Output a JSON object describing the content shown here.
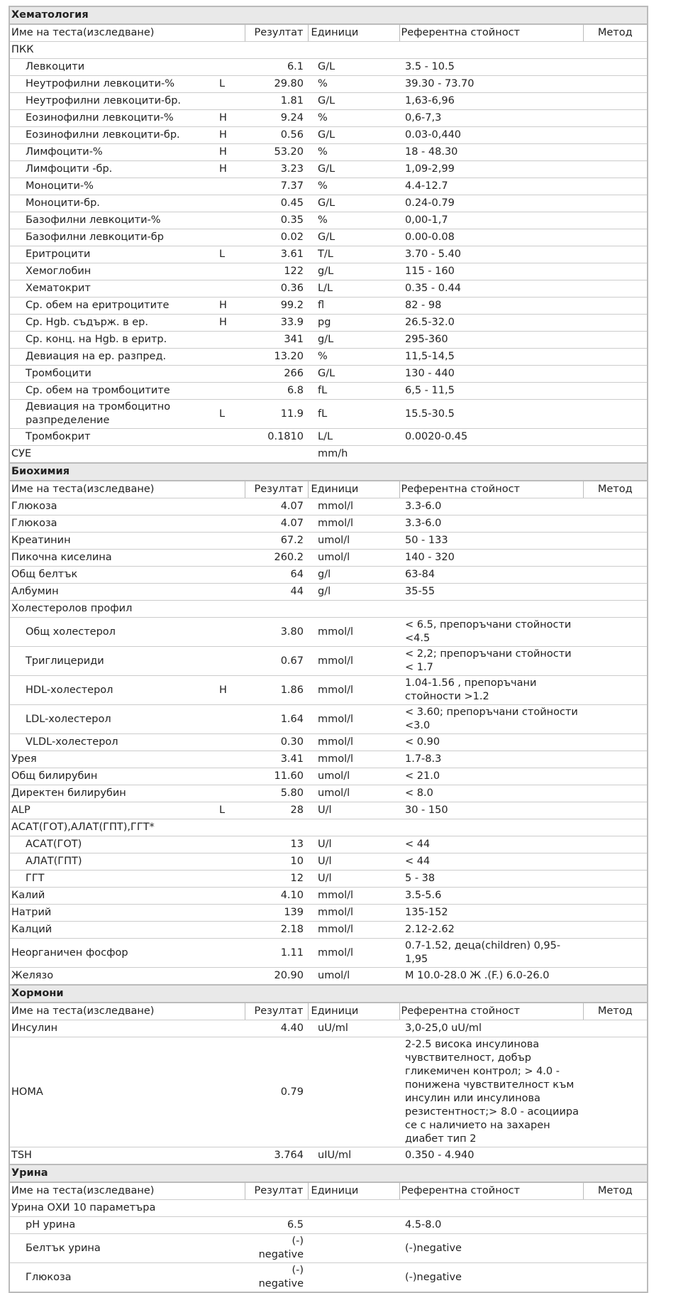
{
  "sections": [
    {
      "title": "Хематология",
      "header": [
        "Име на теста(изследване)",
        "Резултат",
        "Единици",
        "Референтна стойност",
        "Метод"
      ],
      "rows": [
        {
          "name": "ПКК",
          "children": [
            {
              "name": "Левкоцити",
              "result": "6.1",
              "unit": "G/L",
              "ref": "3.5 - 10.5"
            },
            {
              "name": "Неутрофилни левкоцити-%",
              "flag": "L",
              "result": "29.80",
              "unit": "%",
              "ref": "39.30 - 73.70"
            },
            {
              "name": "Неутрофилни левкоцити-бр.",
              "result": "1.81",
              "unit": "G/L",
              "ref": "1,63-6,96"
            },
            {
              "name": "Еозинофилни левкоцити-%",
              "flag": "H",
              "result": "9.24",
              "unit": "%",
              "ref": "0,6-7,3"
            },
            {
              "name": "Еозинофилни левкоцити-бр.",
              "flag": "H",
              "result": "0.56",
              "unit": "G/L",
              "ref": "0.03-0,440"
            },
            {
              "name": "Лимфоцити-%",
              "flag": "H",
              "result": "53.20",
              "unit": "%",
              "ref": "18 - 48.30"
            },
            {
              "name": "Лимфоцити -бр.",
              "flag": "H",
              "result": "3.23",
              "unit": "G/L",
              "ref": "1,09-2,99"
            },
            {
              "name": "Моноцити-%",
              "result": "7.37",
              "unit": "%",
              "ref": "4.4-12.7"
            },
            {
              "name": "Моноцити-бр.",
              "result": "0.45",
              "unit": "G/L",
              "ref": "0.24-0.79"
            },
            {
              "name": "Базофилни левкоцити-%",
              "result": "0.35",
              "unit": "%",
              "ref": "0,00-1,7"
            },
            {
              "name": "Базофилни левкоцити-бр",
              "result": "0.02",
              "unit": "G/L",
              "ref": "0.00-0.08"
            },
            {
              "name": "Еритроцити",
              "flag": "L",
              "result": "3.61",
              "unit": "T/L",
              "ref": "3.70 - 5.40"
            },
            {
              "name": "Хемоглобин",
              "result": "122",
              "unit": "g/L",
              "ref": "115 - 160"
            },
            {
              "name": "Хематокрит",
              "result": "0.36",
              "unit": "L/L",
              "ref": "0.35 - 0.44"
            },
            {
              "name": "Ср. обем на еритроцитите",
              "flag": "H",
              "result": "99.2",
              "unit": "fl",
              "ref": "82 - 98"
            },
            {
              "name": "Ср. Hgb. съдърж. в ер.",
              "flag": "H",
              "result": "33.9",
              "unit": "pg",
              "ref": "26.5-32.0"
            },
            {
              "name": "Ср. конц. на Hgb. в еритр.",
              "result": "341",
              "unit": "g/L",
              "ref": "295-360"
            },
            {
              "name": "Девиация на ер. разпред.",
              "result": "13.20",
              "unit": "%",
              "ref": "11,5-14,5"
            },
            {
              "name": "Тромбоцити",
              "result": "266",
              "unit": "G/L",
              "ref": "130 - 440"
            },
            {
              "name": "Ср. обем на тромбоцитите",
              "result": "6.8",
              "unit": "fL",
              "ref": "6,5 - 11,5"
            },
            {
              "name": "Девиация на тромбоцитно разпределение",
              "flag": "L",
              "result": "11.9",
              "unit": "fL",
              "ref": "15.5-30.5"
            },
            {
              "name": "Тромбокрит",
              "result": "0.1810",
              "unit": "L/L",
              "ref": "0.0020-0.45"
            }
          ]
        },
        {
          "name": "СУЕ",
          "unit": "mm/h"
        }
      ]
    },
    {
      "title": "Биохимия",
      "header": [
        "Име на теста(изследване)",
        "Резултат",
        "Единици",
        "Референтна стойност",
        "Метод"
      ],
      "rows": [
        {
          "name": "Глюкоза",
          "result": "4.07",
          "unit": "mmol/l",
          "ref": "3.3-6.0"
        },
        {
          "name": "Глюкоза",
          "result": "4.07",
          "unit": "mmol/l",
          "ref": "3.3-6.0"
        },
        {
          "name": "Креатинин",
          "result": "67.2",
          "unit": "umol/l",
          "ref": "50 - 133"
        },
        {
          "name": "Пикочна киселина",
          "result": "260.2",
          "unit": "umol/l",
          "ref": "140 - 320"
        },
        {
          "name": "Общ белтък",
          "result": "64",
          "unit": "g/l",
          "ref": "63-84"
        },
        {
          "name": "Албумин",
          "result": "44",
          "unit": "g/l",
          "ref": "35-55"
        },
        {
          "name": "Холестеролов профил",
          "children": [
            {
              "name": "Общ холестерол",
              "result": "3.80",
              "unit": "mmol/l",
              "ref": "< 6.5, препоръчани стойности <4.5"
            },
            {
              "name": "Триглицериди",
              "result": "0.67",
              "unit": "mmol/l",
              "ref": "< 2,2; препоръчани стойности < 1.7"
            },
            {
              "name": "HDL-холестерол",
              "flag": "H",
              "result": "1.86",
              "unit": "mmol/l",
              "ref": "1.04-1.56 , препоръчани стойности >1.2"
            },
            {
              "name": "LDL-холестерол",
              "result": "1.64",
              "unit": "mmol/l",
              "ref": "< 3.60; препоръчани стойности <3.0"
            },
            {
              "name": "VLDL-холестерол",
              "result": "0.30",
              "unit": "mmol/l",
              "ref": "< 0.90"
            }
          ]
        },
        {
          "name": "Урея",
          "result": "3.41",
          "unit": "mmol/l",
          "ref": "1.7-8.3"
        },
        {
          "name": "Общ билирубин",
          "result": "11.60",
          "unit": "umol/l",
          "ref": "< 21.0"
        },
        {
          "name": "Директен билирубин",
          "result": "5.80",
          "unit": "umol/l",
          "ref": "< 8.0"
        },
        {
          "name": "ALP",
          "flag": "L",
          "result": "28",
          "unit": "U/l",
          "ref": "30 - 150"
        },
        {
          "name": "АСАТ(ГОТ),АЛАТ(ГПТ),ГГТ*",
          "children": [
            {
              "name": "АСАТ(ГОТ)",
              "result": "13",
              "unit": "U/l",
              "ref": "< 44"
            },
            {
              "name": "АЛАТ(ГПТ)",
              "result": "10",
              "unit": "U/l",
              "ref": "< 44"
            },
            {
              "name": "ГГТ",
              "result": "12",
              "unit": "U/l",
              "ref": "5 - 38"
            }
          ]
        },
        {
          "name": "Калий",
          "result": "4.10",
          "unit": "mmol/l",
          "ref": "3.5-5.6"
        },
        {
          "name": "Натрий",
          "result": "139",
          "unit": "mmol/l",
          "ref": "135-152"
        },
        {
          "name": "Калций",
          "result": "2.18",
          "unit": "mmol/l",
          "ref": "2.12-2.62"
        },
        {
          "name": "Неорганичен фосфор",
          "result": "1.11",
          "unit": "mmol/l",
          "ref": "0.7-1.52, деца(children) 0,95-1,95"
        },
        {
          "name": "Желязо",
          "result": "20.90",
          "unit": "umol/l",
          "ref": "М 10.0-28.0 Ж .(F.) 6.0-26.0"
        }
      ]
    },
    {
      "title": "Хормони",
      "header": [
        "Име на теста(изследване)",
        "Резултат",
        "Единици",
        "Референтна стойност",
        "Метод"
      ],
      "rows": [
        {
          "name": "Инсулин",
          "result": "4.40",
          "unit": "uU/ml",
          "ref": "3,0-25,0 uU/ml"
        },
        {
          "name": "HOMA",
          "result": "0.79",
          "ref": "2-2.5 висока инсулинова чувствителност, добър гликемичен контрол; > 4.0 - понижена чувствителност към инсулин или инсулинова резистентност;> 8.0 - асоциира се с наличието на захарен диабет тип 2"
        },
        {
          "name": "TSH",
          "result": "3.764",
          "unit": "uIU/ml",
          "ref": "0.350 - 4.940"
        }
      ]
    },
    {
      "title": "Урина",
      "header": [
        "Име на теста(изследване)",
        "Резултат",
        "Единици",
        "Референтна стойност",
        "Метод"
      ],
      "rows": [
        {
          "name": "Урина ОХИ 10 параметъра",
          "children": [
            {
              "name": "pH урина",
              "result": "6.5",
              "ref": "4.5-8.0"
            },
            {
              "name": "Белтък урина",
              "result": "(-) negative",
              "ref": "(-)negative"
            },
            {
              "name": "Глюкоза",
              "result": "(-) negative",
              "ref": "(-)negative"
            }
          ]
        }
      ]
    }
  ]
}
